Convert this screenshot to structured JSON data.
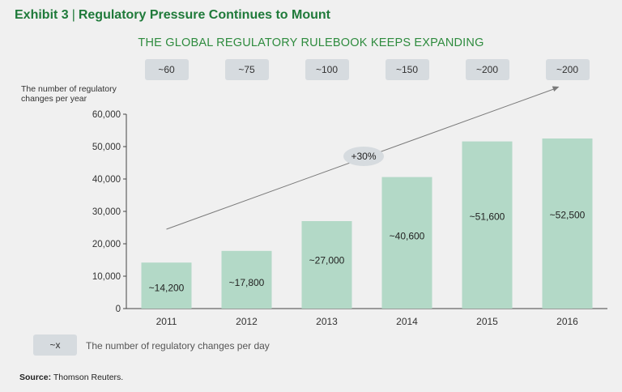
{
  "exhibit": {
    "label": "Exhibit 3",
    "separator": "|",
    "title": "Regulatory Pressure Continues to Mount"
  },
  "chart_data": {
    "type": "bar",
    "title": "THE GLOBAL REGULATORY RULEBOOK KEEPS EXPANDING",
    "ylabel": "The number of regulatory changes per year",
    "xlabel": "",
    "categories": [
      "2011",
      "2012",
      "2013",
      "2014",
      "2015",
      "2016"
    ],
    "values": [
      14200,
      17800,
      27000,
      40600,
      51600,
      52500
    ],
    "data_labels": [
      "~14,200",
      "~17,800",
      "~27,000",
      "~40,600",
      "~51,600",
      "~52,500"
    ],
    "per_day_labels": [
      "~60",
      "~75",
      "~100",
      "~150",
      "~200",
      "~200"
    ],
    "ylim": [
      0,
      60000
    ],
    "yticks": [
      0,
      10000,
      20000,
      30000,
      40000,
      50000,
      60000
    ],
    "ytick_labels": [
      "0",
      "10,000",
      "20,000",
      "30,000",
      "40,000",
      "50,000",
      "60,000"
    ],
    "growth_annotation": "+30%",
    "bar_color": "#b3d9c7",
    "axis_color": "#444444",
    "arrow_color": "#7a7a7a",
    "grid": false
  },
  "legend": {
    "symbol": "~x",
    "text": "The number of regulatory changes per day"
  },
  "source": {
    "label": "Source:",
    "text": "Thomson Reuters."
  }
}
